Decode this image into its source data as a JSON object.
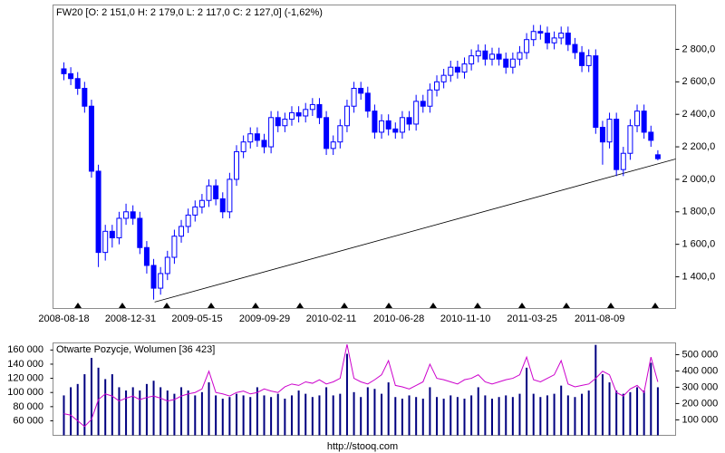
{
  "chart_data": [
    {
      "type": "candlestick",
      "title": "FW20 [O: 2 151,0  H: 2 179,0  L: 2 117,0  C: 2 127,0] (-1,62%)",
      "color": "#0000ff",
      "x": [
        "2008-08-18",
        "2008-09-01",
        "2008-09-15",
        "2008-09-29",
        "2008-10-13",
        "2008-10-27",
        "2008-11-10",
        "2008-11-24",
        "2008-12-08",
        "2008-12-22",
        "2009-01-05",
        "2009-01-19",
        "2009-02-02",
        "2009-02-16",
        "2009-03-02",
        "2009-03-16",
        "2009-03-30",
        "2009-04-13",
        "2009-04-27",
        "2009-05-11",
        "2009-05-25",
        "2009-06-08",
        "2009-06-22",
        "2009-07-06",
        "2009-07-20",
        "2009-08-03",
        "2009-08-17",
        "2009-08-31",
        "2009-09-14",
        "2009-09-28",
        "2009-10-12",
        "2009-10-26",
        "2009-11-09",
        "2009-11-23",
        "2009-12-07",
        "2009-12-21",
        "2010-01-04",
        "2010-01-18",
        "2010-02-01",
        "2010-02-15",
        "2010-03-01",
        "2010-03-15",
        "2010-03-29",
        "2010-04-12",
        "2010-04-26",
        "2010-05-10",
        "2010-05-24",
        "2010-06-07",
        "2010-06-21",
        "2010-07-05",
        "2010-07-19",
        "2010-08-02",
        "2010-08-16",
        "2010-08-30",
        "2010-09-13",
        "2010-09-27",
        "2010-10-11",
        "2010-10-25",
        "2010-11-08",
        "2010-11-22",
        "2010-12-06",
        "2010-12-20",
        "2011-01-03",
        "2011-01-17",
        "2011-01-31",
        "2011-02-14",
        "2011-02-28",
        "2011-03-14",
        "2011-03-28",
        "2011-04-11",
        "2011-04-25",
        "2011-05-09",
        "2011-05-23",
        "2011-06-06",
        "2011-06-20",
        "2011-07-04",
        "2011-07-18",
        "2011-08-01",
        "2011-08-15",
        "2011-08-29",
        "2011-09-12",
        "2011-09-26",
        "2011-10-10",
        "2011-10-24",
        "2011-11-07",
        "2011-11-21",
        "2011-12-05"
      ],
      "open": [
        2680,
        2650,
        2620,
        2560,
        2450,
        2050,
        1550,
        1680,
        1640,
        1760,
        1800,
        1760,
        1580,
        1470,
        1330,
        1420,
        1520,
        1650,
        1710,
        1780,
        1830,
        1870,
        1960,
        1880,
        1800,
        2000,
        2170,
        2230,
        2280,
        2240,
        2200,
        2380,
        2330,
        2370,
        2410,
        2390,
        2430,
        2460,
        2380,
        2190,
        2230,
        2330,
        2450,
        2560,
        2530,
        2420,
        2290,
        2360,
        2310,
        2290,
        2380,
        2340,
        2480,
        2450,
        2550,
        2600,
        2640,
        2690,
        2660,
        2710,
        2760,
        2790,
        2740,
        2770,
        2740,
        2690,
        2740,
        2780,
        2860,
        2910,
        2900,
        2840,
        2870,
        2900,
        2830,
        2780,
        2700,
        2760,
        2320,
        2230,
        2370,
        2060,
        2160,
        2330,
        2420,
        2290,
        2151
      ],
      "high": [
        2720,
        2690,
        2660,
        2600,
        2490,
        2090,
        1720,
        1720,
        1800,
        1850,
        1840,
        1800,
        1620,
        1510,
        1460,
        1560,
        1690,
        1750,
        1820,
        1870,
        1910,
        2000,
        2000,
        1920,
        2040,
        2210,
        2270,
        2320,
        2320,
        2280,
        2420,
        2420,
        2410,
        2450,
        2450,
        2470,
        2500,
        2500,
        2420,
        2270,
        2370,
        2490,
        2600,
        2600,
        2570,
        2460,
        2400,
        2400,
        2350,
        2420,
        2420,
        2520,
        2520,
        2590,
        2640,
        2680,
        2730,
        2730,
        2750,
        2800,
        2830,
        2830,
        2810,
        2810,
        2780,
        2780,
        2820,
        2900,
        2950,
        2950,
        2940,
        2910,
        2940,
        2940,
        2870,
        2820,
        2800,
        2800,
        2360,
        2410,
        2410,
        2200,
        2370,
        2460,
        2460,
        2330,
        2179
      ],
      "low": [
        2610,
        2580,
        2520,
        2410,
        2010,
        1460,
        1500,
        1580,
        1600,
        1720,
        1720,
        1540,
        1420,
        1260,
        1290,
        1380,
        1480,
        1610,
        1670,
        1740,
        1790,
        1830,
        1840,
        1760,
        1760,
        1960,
        2130,
        2190,
        2200,
        2160,
        2160,
        2290,
        2290,
        2330,
        2350,
        2350,
        2390,
        2340,
        2150,
        2150,
        2190,
        2290,
        2410,
        2490,
        2380,
        2250,
        2250,
        2270,
        2250,
        2250,
        2300,
        2300,
        2410,
        2410,
        2510,
        2560,
        2600,
        2620,
        2620,
        2670,
        2720,
        2700,
        2700,
        2700,
        2650,
        2650,
        2700,
        2740,
        2820,
        2860,
        2800,
        2800,
        2830,
        2790,
        2740,
        2660,
        2660,
        2280,
        2090,
        2190,
        2020,
        2020,
        2120,
        2290,
        2250,
        2200,
        2117
      ],
      "close": [
        2650,
        2620,
        2560,
        2450,
        2050,
        1550,
        1680,
        1640,
        1760,
        1800,
        1760,
        1580,
        1470,
        1330,
        1420,
        1520,
        1650,
        1710,
        1780,
        1830,
        1870,
        1960,
        1880,
        1800,
        2000,
        2170,
        2230,
        2280,
        2240,
        2200,
        2380,
        2330,
        2370,
        2410,
        2390,
        2430,
        2460,
        2380,
        2190,
        2230,
        2330,
        2450,
        2560,
        2530,
        2420,
        2290,
        2360,
        2310,
        2290,
        2380,
        2340,
        2480,
        2450,
        2550,
        2600,
        2640,
        2690,
        2660,
        2710,
        2760,
        2790,
        2740,
        2770,
        2740,
        2690,
        2740,
        2780,
        2860,
        2910,
        2900,
        2840,
        2870,
        2900,
        2830,
        2780,
        2700,
        2760,
        2320,
        2230,
        2370,
        2060,
        2160,
        2330,
        2420,
        2290,
        2240,
        2127
      ],
      "trendline": {
        "x": [
          "2009-02-18",
          "2012-01-10"
        ],
        "values": [
          1245,
          2125
        ],
        "color": "#000000"
      },
      "xlim": [
        "2008-07-27",
        "2012-01-10"
      ],
      "xticks": [
        "2008-08-18",
        "2008-12-31",
        "2009-05-15",
        "2009-09-29",
        "2010-02-11",
        "2010-06-28",
        "2010-11-10",
        "2011-03-25",
        "2011-08-09"
      ],
      "ylim": [
        1205,
        3073
      ],
      "yticks": [
        {
          "value": 1400,
          "label": "1 400,0"
        },
        {
          "value": 1600,
          "label": "1 600,0"
        },
        {
          "value": 1800,
          "label": "1 800,0"
        },
        {
          "value": 2000,
          "label": "2 000,0"
        },
        {
          "value": 2200,
          "label": "2 200,0"
        },
        {
          "value": 2400,
          "label": "2 400,0"
        },
        {
          "value": 2600,
          "label": "2 600,0"
        },
        {
          "value": 2800,
          "label": "2 800,0"
        }
      ]
    },
    {
      "type": "combo",
      "title": "Otwarte Pozycje, Wolumen [36 423]",
      "series": [
        {
          "type": "bar",
          "axis": "y2",
          "color": "#000080",
          "values": [
            250000,
            300000,
            320000,
            380000,
            480000,
            420000,
            350000,
            380000,
            300000,
            280000,
            300000,
            280000,
            320000,
            340000,
            300000,
            280000,
            260000,
            300000,
            280000,
            250000,
            270000,
            330000,
            250000,
            230000,
            240000,
            260000,
            250000,
            240000,
            300000,
            250000,
            240000,
            260000,
            230000,
            250000,
            280000,
            260000,
            240000,
            250000,
            300000,
            250000,
            260000,
            505000,
            270000,
            240000,
            300000,
            290000,
            260000,
            330000,
            240000,
            230000,
            250000,
            240000,
            230000,
            300000,
            240000,
            230000,
            250000,
            240000,
            230000,
            250000,
            300000,
            250000,
            230000,
            240000,
            250000,
            240000,
            260000,
            420000,
            260000,
            240000,
            250000,
            260000,
            310000,
            250000,
            240000,
            260000,
            280000,
            560000,
            380000,
            330000,
            280000,
            260000,
            270000,
            300000,
            280000,
            450000,
            300000
          ]
        },
        {
          "type": "line",
          "axis": "y",
          "color": "#cc00cc",
          "values": [
            70000,
            68000,
            60000,
            52000,
            62000,
            90000,
            98000,
            95000,
            88000,
            92000,
            95000,
            90000,
            93000,
            95000,
            92000,
            88000,
            90000,
            95000,
            98000,
            100000,
            105000,
            130000,
            100000,
            98000,
            95000,
            100000,
            102000,
            98000,
            100000,
            105000,
            102000,
            100000,
            108000,
            112000,
            110000,
            115000,
            113000,
            118000,
            112000,
            115000,
            120000,
            168000,
            120000,
            115000,
            112000,
            118000,
            125000,
            145000,
            110000,
            108000,
            105000,
            110000,
            115000,
            140000,
            120000,
            118000,
            115000,
            112000,
            118000,
            120000,
            125000,
            115000,
            112000,
            115000,
            118000,
            120000,
            125000,
            150000,
            118000,
            115000,
            120000,
            125000,
            145000,
            112000,
            108000,
            110000,
            112000,
            120000,
            130000,
            125000,
            100000,
            95000,
            105000,
            110000,
            100000,
            150000,
            115000
          ]
        }
      ],
      "ylim": [
        39500,
        170000
      ],
      "yticks": [
        {
          "value": 60000,
          "label": "60 000"
        },
        {
          "value": 80000,
          "label": "80 000"
        },
        {
          "value": 100000,
          "label": "100 000"
        },
        {
          "value": 120000,
          "label": "120 000"
        },
        {
          "value": 140000,
          "label": "140 000"
        },
        {
          "value": 160000,
          "label": "160 000"
        }
      ],
      "y2lim": [
        5000,
        572000
      ],
      "y2ticks": [
        {
          "value": 100000,
          "label": "100 000"
        },
        {
          "value": 200000,
          "label": "200 000"
        },
        {
          "value": 300000,
          "label": "300 000"
        },
        {
          "value": 400000,
          "label": "400 000"
        },
        {
          "value": 500000,
          "label": "500 000"
        }
      ]
    }
  ],
  "footer": "http://stooq.com"
}
